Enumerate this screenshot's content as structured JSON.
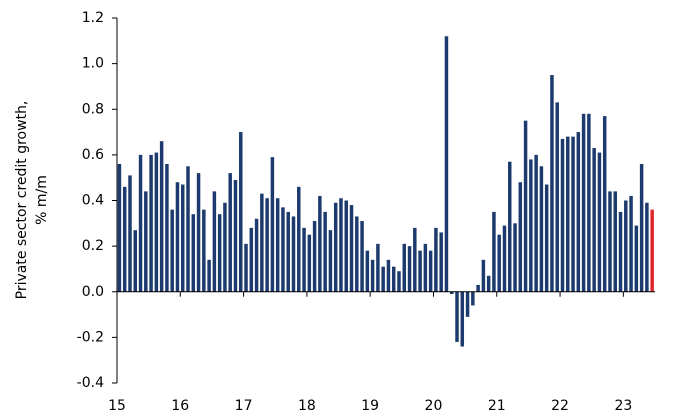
{
  "chart_data": {
    "type": "bar",
    "ylabel": [
      "Private sector credit growth,",
      "% m/m"
    ],
    "categories": [
      "15",
      null,
      null,
      null,
      null,
      null,
      null,
      null,
      null,
      null,
      null,
      null,
      "16",
      null,
      null,
      null,
      null,
      null,
      null,
      null,
      null,
      null,
      null,
      null,
      "17",
      null,
      null,
      null,
      null,
      null,
      null,
      null,
      null,
      null,
      null,
      null,
      "18",
      null,
      null,
      null,
      null,
      null,
      null,
      null,
      null,
      null,
      null,
      null,
      "19",
      null,
      null,
      null,
      null,
      null,
      null,
      null,
      null,
      null,
      null,
      null,
      "20",
      null,
      null,
      null,
      null,
      null,
      null,
      null,
      null,
      null,
      null,
      null,
      "21",
      null,
      null,
      null,
      null,
      null,
      null,
      null,
      null,
      null,
      null,
      null,
      "22",
      null,
      null,
      null,
      null,
      null,
      null,
      null,
      null,
      null,
      null,
      null,
      "23",
      null,
      null,
      null,
      null,
      null
    ],
    "values": [
      0.56,
      0.46,
      0.51,
      0.27,
      0.6,
      0.44,
      0.6,
      0.61,
      0.66,
      0.56,
      0.36,
      0.48,
      0.47,
      0.55,
      0.34,
      0.52,
      0.36,
      0.14,
      0.44,
      0.34,
      0.39,
      0.52,
      0.49,
      0.7,
      0.21,
      0.28,
      0.32,
      0.43,
      0.41,
      0.59,
      0.41,
      0.37,
      0.35,
      0.33,
      0.46,
      0.28,
      0.25,
      0.31,
      0.42,
      0.35,
      0.27,
      0.39,
      0.41,
      0.4,
      0.38,
      0.33,
      0.31,
      0.18,
      0.14,
      0.21,
      0.11,
      0.14,
      0.11,
      0.09,
      0.21,
      0.2,
      0.28,
      0.18,
      0.21,
      0.18,
      0.28,
      0.26,
      1.12,
      -0.01,
      -0.22,
      -0.24,
      -0.11,
      -0.06,
      0.03,
      0.14,
      0.07,
      0.35,
      0.25,
      0.29,
      0.57,
      0.3,
      0.48,
      0.75,
      0.58,
      0.6,
      0.55,
      0.47,
      0.95,
      0.83,
      0.67,
      0.68,
      0.68,
      0.7,
      0.78,
      0.78,
      0.63,
      0.61,
      0.77,
      0.44,
      0.44,
      0.35,
      0.4,
      0.42,
      0.29,
      0.56,
      0.39,
      0.36
    ],
    "colors": [
      "#1c3a6e",
      "#1c3a6e",
      "#1c3a6e",
      "#1c3a6e",
      "#1c3a6e",
      "#1c3a6e",
      "#1c3a6e",
      "#1c3a6e",
      "#1c3a6e",
      "#1c3a6e",
      "#1c3a6e",
      "#1c3a6e",
      "#1c3a6e",
      "#1c3a6e",
      "#1c3a6e",
      "#1c3a6e",
      "#1c3a6e",
      "#1c3a6e",
      "#1c3a6e",
      "#1c3a6e",
      "#1c3a6e",
      "#1c3a6e",
      "#1c3a6e",
      "#1c3a6e",
      "#1c3a6e",
      "#1c3a6e",
      "#1c3a6e",
      "#1c3a6e",
      "#1c3a6e",
      "#1c3a6e",
      "#1c3a6e",
      "#1c3a6e",
      "#1c3a6e",
      "#1c3a6e",
      "#1c3a6e",
      "#1c3a6e",
      "#1c3a6e",
      "#1c3a6e",
      "#1c3a6e",
      "#1c3a6e",
      "#1c3a6e",
      "#1c3a6e",
      "#1c3a6e",
      "#1c3a6e",
      "#1c3a6e",
      "#1c3a6e",
      "#1c3a6e",
      "#1c3a6e",
      "#1c3a6e",
      "#1c3a6e",
      "#1c3a6e",
      "#1c3a6e",
      "#1c3a6e",
      "#1c3a6e",
      "#1c3a6e",
      "#1c3a6e",
      "#1c3a6e",
      "#1c3a6e",
      "#1c3a6e",
      "#1c3a6e",
      "#1c3a6e",
      "#1c3a6e",
      "#1c3a6e",
      "#1c3a6e",
      "#1c3a6e",
      "#1c3a6e",
      "#1c3a6e",
      "#1c3a6e",
      "#1c3a6e",
      "#1c3a6e",
      "#1c3a6e",
      "#1c3a6e",
      "#1c3a6e",
      "#1c3a6e",
      "#1c3a6e",
      "#1c3a6e",
      "#1c3a6e",
      "#1c3a6e",
      "#1c3a6e",
      "#1c3a6e",
      "#1c3a6e",
      "#1c3a6e",
      "#1c3a6e",
      "#1c3a6e",
      "#1c3a6e",
      "#1c3a6e",
      "#1c3a6e",
      "#1c3a6e",
      "#1c3a6e",
      "#1c3a6e",
      "#1c3a6e",
      "#1c3a6e",
      "#1c3a6e",
      "#1c3a6e",
      "#1c3a6e",
      "#1c3a6e",
      "#1c3a6e",
      "#1c3a6e",
      "#1c3a6e",
      "#1c3a6e",
      "#1c3a6e",
      "#e0252b"
    ],
    "ylim": [
      -0.4,
      1.2
    ],
    "yticks": [
      -0.4,
      -0.2,
      {
        "value": 0,
        "label": "0.0"
      },
      0.2,
      0.4,
      0.6,
      0.8,
      {
        "value": 1,
        "label": "1.0"
      },
      1.2
    ]
  }
}
